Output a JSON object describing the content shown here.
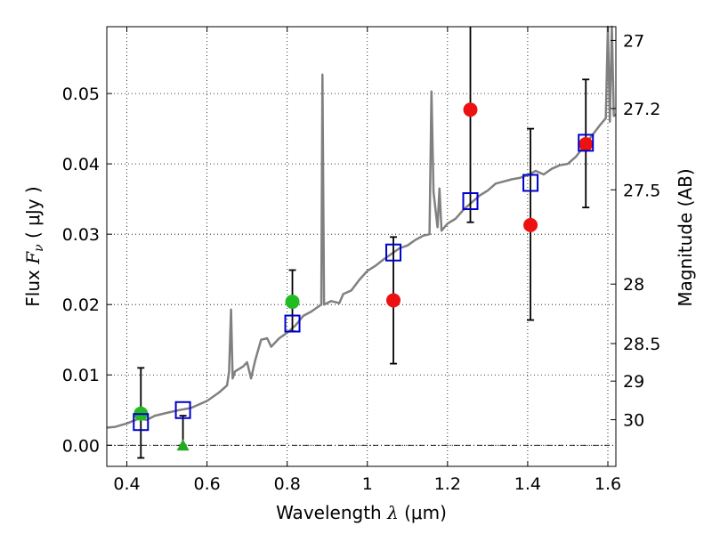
{
  "chart_data": {
    "type": "scatter",
    "xlabel": "Wavelength  λ (μm)",
    "ylabel": "Flux  Fν  ( μJy )",
    "ylabel_parts": {
      "prefix": "Flux  ",
      "var": "F",
      "sub": "ν",
      "suffix": "  ( μJy )"
    },
    "xlabel_parts": {
      "prefix": "Wavelength  ",
      "var": "λ",
      "suffix": " (μm)"
    },
    "right_ylabel": "Magnitude (AB)",
    "xlim": [
      0.35,
      1.62
    ],
    "ylim": [
      -0.003,
      0.0595
    ],
    "grid": true,
    "x_ticks": [
      {
        "value": 0.4,
        "label": "0.4"
      },
      {
        "value": 0.6,
        "label": "0.6"
      },
      {
        "value": 0.8,
        "label": "0.8"
      },
      {
        "value": 1.0,
        "label": "1"
      },
      {
        "value": 1.2,
        "label": "1.2"
      },
      {
        "value": 1.4,
        "label": "1.4"
      },
      {
        "value": 1.6,
        "label": "1.6"
      }
    ],
    "y_ticks": [
      {
        "value": 0.0,
        "label": "0.00"
      },
      {
        "value": 0.01,
        "label": "0.01"
      },
      {
        "value": 0.02,
        "label": "0.02"
      },
      {
        "value": 0.03,
        "label": "0.03"
      },
      {
        "value": 0.04,
        "label": "0.04"
      },
      {
        "value": 0.05,
        "label": "0.05"
      }
    ],
    "right_ticks": [
      {
        "mag": 27,
        "label": "27"
      },
      {
        "mag": 27.2,
        "label": "27.2"
      },
      {
        "mag": 27.5,
        "label": "27.5"
      },
      {
        "mag": 28,
        "label": "28"
      },
      {
        "mag": 28.5,
        "label": "28.5"
      },
      {
        "mag": 29,
        "label": "29"
      },
      {
        "mag": 30,
        "label": "30"
      }
    ],
    "zero_line": 0.0,
    "model_spectrum": {
      "color": "#808080",
      "points": [
        [
          0.35,
          0.0025
        ],
        [
          0.37,
          0.0026
        ],
        [
          0.4,
          0.0031
        ],
        [
          0.43,
          0.0038
        ],
        [
          0.45,
          0.0036
        ],
        [
          0.47,
          0.0042
        ],
        [
          0.5,
          0.0046
        ],
        [
          0.53,
          0.005
        ],
        [
          0.56,
          0.0053
        ],
        [
          0.6,
          0.0063
        ],
        [
          0.63,
          0.0075
        ],
        [
          0.65,
          0.0085
        ],
        [
          0.655,
          0.0105
        ],
        [
          0.66,
          0.0193
        ],
        [
          0.664,
          0.0095
        ],
        [
          0.67,
          0.0105
        ],
        [
          0.69,
          0.0112
        ],
        [
          0.7,
          0.0118
        ],
        [
          0.71,
          0.0095
        ],
        [
          0.72,
          0.012
        ],
        [
          0.735,
          0.015
        ],
        [
          0.75,
          0.0152
        ],
        [
          0.76,
          0.014
        ],
        [
          0.78,
          0.0152
        ],
        [
          0.8,
          0.016
        ],
        [
          0.82,
          0.017
        ],
        [
          0.84,
          0.0184
        ],
        [
          0.86,
          0.019
        ],
        [
          0.875,
          0.0196
        ],
        [
          0.885,
          0.02
        ],
        [
          0.888,
          0.0527
        ],
        [
          0.892,
          0.02
        ],
        [
          0.91,
          0.0205
        ],
        [
          0.93,
          0.0202
        ],
        [
          0.94,
          0.0215
        ],
        [
          0.96,
          0.022
        ],
        [
          0.98,
          0.0235
        ],
        [
          1.0,
          0.0248
        ],
        [
          1.02,
          0.0255
        ],
        [
          1.04,
          0.0264
        ],
        [
          1.06,
          0.0272
        ],
        [
          1.08,
          0.028
        ],
        [
          1.1,
          0.0284
        ],
        [
          1.12,
          0.0292
        ],
        [
          1.14,
          0.0298
        ],
        [
          1.155,
          0.03
        ],
        [
          1.16,
          0.0503
        ],
        [
          1.165,
          0.036
        ],
        [
          1.175,
          0.031
        ],
        [
          1.18,
          0.0365
        ],
        [
          1.185,
          0.0305
        ],
        [
          1.2,
          0.0315
        ],
        [
          1.22,
          0.0322
        ],
        [
          1.24,
          0.0335
        ],
        [
          1.26,
          0.0345
        ],
        [
          1.28,
          0.0355
        ],
        [
          1.3,
          0.0362
        ],
        [
          1.32,
          0.0372
        ],
        [
          1.34,
          0.0375
        ],
        [
          1.36,
          0.0378
        ],
        [
          1.38,
          0.038
        ],
        [
          1.4,
          0.0384
        ],
        [
          1.42,
          0.039
        ],
        [
          1.44,
          0.0385
        ],
        [
          1.46,
          0.0393
        ],
        [
          1.48,
          0.0398
        ],
        [
          1.5,
          0.04
        ],
        [
          1.52,
          0.041
        ],
        [
          1.54,
          0.0425
        ],
        [
          1.56,
          0.044
        ],
        [
          1.58,
          0.0455
        ],
        [
          1.595,
          0.0465
        ],
        [
          1.6,
          0.0595
        ],
        [
          1.605,
          0.046
        ],
        [
          1.61,
          0.0595
        ],
        [
          1.615,
          0.0468
        ],
        [
          1.62,
          0.047
        ]
      ]
    },
    "series": [
      {
        "marker": "circle",
        "color": "#22bb22",
        "points": [
          {
            "x": 0.435,
            "y": 0.0045,
            "err": [
              0.0063,
              0.0065
            ]
          },
          {
            "x": 0.813,
            "y": 0.0204,
            "err": [
              0.0042,
              0.0045
            ]
          }
        ]
      },
      {
        "marker": "triangle",
        "color": "#22aa22",
        "points": [
          {
            "x": 0.54,
            "y": 0.0,
            "err": [
              0.0,
              0.0042
            ]
          }
        ]
      },
      {
        "marker": "circle",
        "color": "#ee1111",
        "points": [
          {
            "x": 1.065,
            "y": 0.0206,
            "err": [
              0.009,
              0.009
            ]
          },
          {
            "x": 1.257,
            "y": 0.0477,
            "err": [
              0.016,
              0.012
            ]
          },
          {
            "x": 1.407,
            "y": 0.0313,
            "err": [
              0.0135,
              0.0137
            ]
          },
          {
            "x": 1.545,
            "y": 0.0428,
            "err": [
              0.009,
              0.0092
            ]
          }
        ]
      },
      {
        "marker": "square-open",
        "color": "#0000cc",
        "points": [
          {
            "x": 0.435,
            "y": 0.0033
          },
          {
            "x": 0.54,
            "y": 0.005
          },
          {
            "x": 0.813,
            "y": 0.0173
          },
          {
            "x": 1.065,
            "y": 0.0274
          },
          {
            "x": 1.257,
            "y": 0.0347
          },
          {
            "x": 1.407,
            "y": 0.0373
          },
          {
            "x": 1.545,
            "y": 0.043
          }
        ]
      }
    ]
  }
}
